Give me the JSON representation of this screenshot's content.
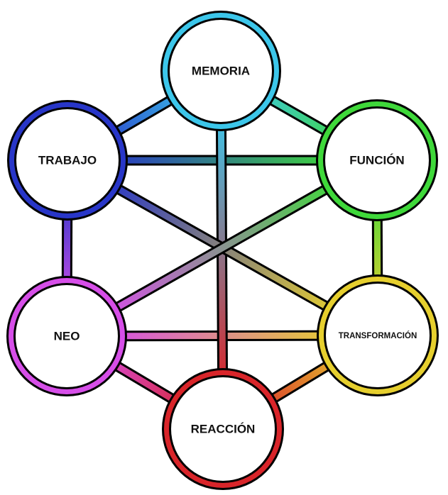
{
  "nodes": [
    {
      "id": "memoria",
      "label": "MEMORIA",
      "color": "#3cc6ea"
    },
    {
      "id": "funcion",
      "label": "FUNCIÓN",
      "color": "#3fd83a"
    },
    {
      "id": "transformacion",
      "label": "TRANSFORMACIÓN",
      "color": "#e6cf2e"
    },
    {
      "id": "reaccion",
      "label": "REACCIÓN",
      "color": "#d9252a"
    },
    {
      "id": "neo",
      "label": "NEO",
      "color": "#d64ee8"
    },
    {
      "id": "trabajo",
      "label": "TRABAJO",
      "color": "#2836c8"
    }
  ],
  "edges": [
    [
      "memoria",
      "funcion"
    ],
    [
      "funcion",
      "transformacion"
    ],
    [
      "transformacion",
      "reaccion"
    ],
    [
      "reaccion",
      "neo"
    ],
    [
      "neo",
      "trabajo"
    ],
    [
      "trabajo",
      "memoria"
    ],
    [
      "trabajo",
      "funcion"
    ],
    [
      "neo",
      "transformacion"
    ],
    [
      "memoria",
      "reaccion"
    ],
    [
      "trabajo",
      "transformacion"
    ],
    [
      "funcion",
      "neo"
    ]
  ]
}
